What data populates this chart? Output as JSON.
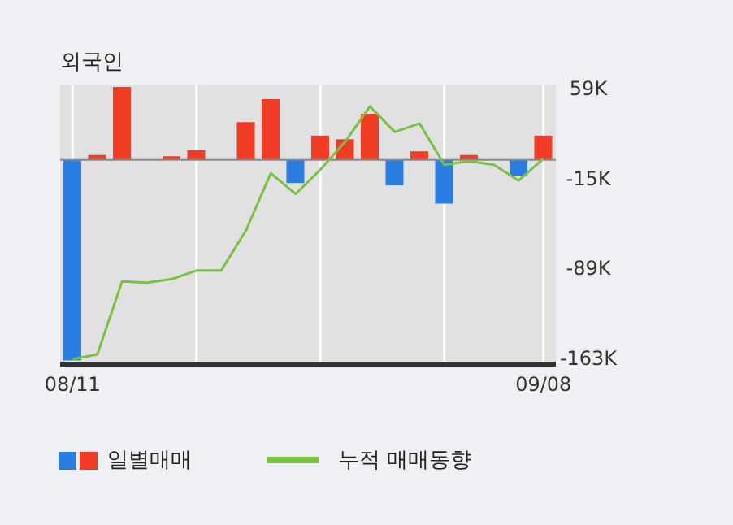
{
  "chart_data": {
    "type": "bar",
    "title": "외국인",
    "categories": [
      "08/11",
      null,
      null,
      null,
      null,
      null,
      null,
      null,
      null,
      null,
      null,
      null,
      null,
      null,
      null,
      null,
      null,
      null,
      null,
      "09/08"
    ],
    "series": [
      {
        "name": "일별매매",
        "colors": [
          "#2a7de1",
          "#f03c24",
          "#f03c24",
          "#f03c24",
          "#f03c24",
          "#f03c24",
          "#f03c24",
          "#f03c24",
          "#f03c24",
          "#2a7de1",
          "#f03c24",
          "#f03c24",
          "#f03c24",
          "#2a7de1",
          "#f03c24",
          "#2a7de1",
          "#f03c24",
          "#f03c24",
          "#2a7de1",
          "#f03c24"
        ],
        "values": [
          -165000,
          4000,
          60000,
          0,
          3000,
          8000,
          0,
          31000,
          50000,
          -19000,
          20000,
          17000,
          38000,
          -21000,
          7000,
          -36000,
          4000,
          0,
          -13000,
          20000
        ]
      },
      {
        "name": "누적 매매동향",
        "type": "line",
        "color": "#7ac143",
        "values": [
          -164000,
          -160000,
          -100000,
          -101000,
          -98000,
          -91000,
          -91000,
          -58000,
          -11000,
          -28000,
          -8000,
          15000,
          44000,
          23000,
          30000,
          -4000,
          -1000,
          -4000,
          -17000,
          1000
        ]
      }
    ],
    "ylim": [
      -168000,
      62000
    ],
    "yticks": [
      {
        "value": 59000,
        "label": "59K"
      },
      {
        "value": -15000,
        "label": "-15K"
      },
      {
        "value": -89000,
        "label": "-89K"
      },
      {
        "value": -163000,
        "label": "-163K"
      }
    ],
    "ref_lines": [
      {
        "axis": "y",
        "value": 0,
        "color": "#888888"
      }
    ],
    "grid": true,
    "legend": "bottom",
    "marker": "none"
  }
}
